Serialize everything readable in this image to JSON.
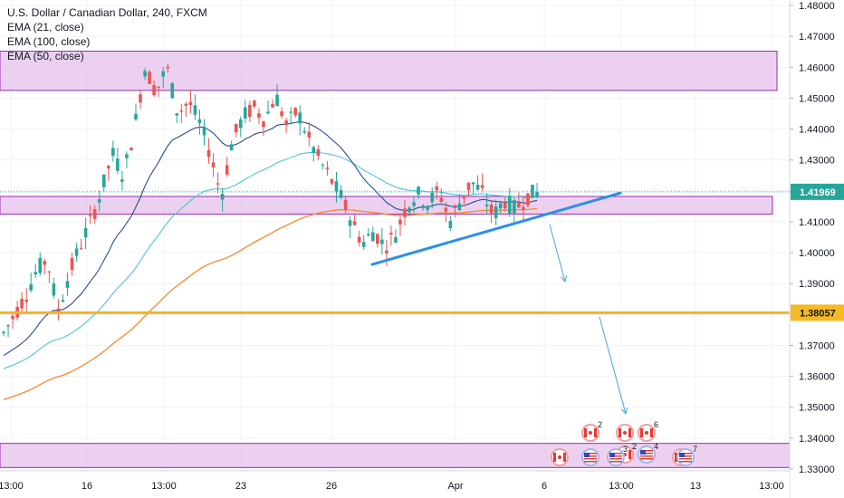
{
  "legend": {
    "title": "U.S. Dollar / Canadian Dollar, 240, FXCM",
    "ema21": "EMA (21, close)",
    "ema100": "EMA (100, close)",
    "ema50": "EMA (50, close)"
  },
  "price_axis": {
    "ticks": [
      "1.48000",
      "1.47000",
      "1.46000",
      "1.45000",
      "1.44000",
      "1.43000",
      "1.42000",
      "1.41000",
      "1.40000",
      "1.39000",
      "1.38000",
      "1.37000",
      "1.36000",
      "1.35000",
      "1.34000",
      "1.33000"
    ],
    "current_price": "1.41969",
    "level_price": "1.38057"
  },
  "time_axis": {
    "labels": [
      "13:00",
      "16",
      "13:00",
      "23",
      "26",
      "Apr",
      "6",
      "13:00",
      "13",
      "13:00"
    ]
  },
  "events": {
    "counts": [
      "2",
      "6",
      "2",
      "3",
      "4",
      "7"
    ]
  },
  "colors": {
    "up": "#26a69a",
    "down": "#ef5350",
    "ema21": "#2a4e8a",
    "ema50": "#4bc6d6",
    "ema100": "#f7882b",
    "zone_fill": "#e7c9ec",
    "zone_border": "#9c27b0",
    "level_line": "#f0b429",
    "trendline": "#2c8fe6",
    "arrow": "#4aa3df",
    "current_tag": "#26a69a",
    "level_tag": "#f5b922"
  },
  "chart_data": {
    "type": "candlestick",
    "symbol": "U.S. Dollar / Canadian Dollar, 240, FXCM",
    "ylim": [
      1.3295,
      1.481
    ],
    "current_price": 1.41969,
    "horizontal_level": 1.38057,
    "zones": [
      [
        1.4525,
        1.4652
      ],
      [
        1.4125,
        1.4182
      ],
      [
        1.3305,
        1.3383
      ]
    ],
    "trendline": [
      [
        0.0,
        1.3962
      ],
      [
        1.0,
        1.4193
      ]
    ],
    "projection": [
      [
        0.0,
        1.4085
      ],
      [
        0.35,
        1.3925
      ]
    ],
    "projection2": [
      [
        0.0,
        1.3795
      ],
      [
        1.0,
        1.3465
      ]
    ],
    "candles_keypoints": [
      [
        1.372,
        1.374
      ],
      [
        1.377,
        1.38
      ],
      [
        1.382,
        1.386
      ],
      [
        1.388,
        1.394
      ],
      [
        1.392,
        1.398
      ],
      [
        1.389,
        1.381
      ],
      [
        1.386,
        1.393
      ],
      [
        1.395,
        1.402
      ],
      [
        1.404,
        1.41
      ],
      [
        1.412,
        1.42
      ],
      [
        1.42,
        1.432
      ],
      [
        1.43,
        1.425
      ],
      [
        1.427,
        1.44
      ],
      [
        1.442,
        1.46
      ],
      [
        1.458,
        1.452
      ],
      [
        1.455,
        1.46
      ],
      [
        1.455,
        1.445
      ],
      [
        1.447,
        1.449
      ],
      [
        1.448,
        1.442
      ],
      [
        1.444,
        1.432
      ],
      [
        1.43,
        1.418
      ],
      [
        1.42,
        1.436
      ],
      [
        1.436,
        1.444
      ],
      [
        1.445,
        1.447
      ],
      [
        1.447,
        1.443
      ],
      [
        1.444,
        1.451
      ],
      [
        1.448,
        1.441
      ],
      [
        1.442,
        1.446
      ],
      [
        1.444,
        1.437
      ],
      [
        1.438,
        1.43
      ],
      [
        1.432,
        1.424
      ],
      [
        1.424,
        1.418
      ],
      [
        1.418,
        1.41
      ],
      [
        1.41,
        1.403
      ],
      [
        1.403,
        1.407
      ],
      [
        1.407,
        1.402
      ],
      [
        1.402,
        1.406
      ],
      [
        1.406,
        1.415
      ],
      [
        1.414,
        1.419
      ],
      [
        1.419,
        1.416
      ],
      [
        1.416,
        1.42
      ],
      [
        1.42,
        1.41
      ],
      [
        1.41,
        1.417
      ],
      [
        1.417,
        1.423
      ],
      [
        1.423,
        1.419
      ],
      [
        1.419,
        1.412
      ],
      [
        1.412,
        1.417
      ],
      [
        1.417,
        1.414
      ],
      [
        1.414,
        1.418
      ],
      [
        1.418,
        1.4197
      ]
    ]
  }
}
